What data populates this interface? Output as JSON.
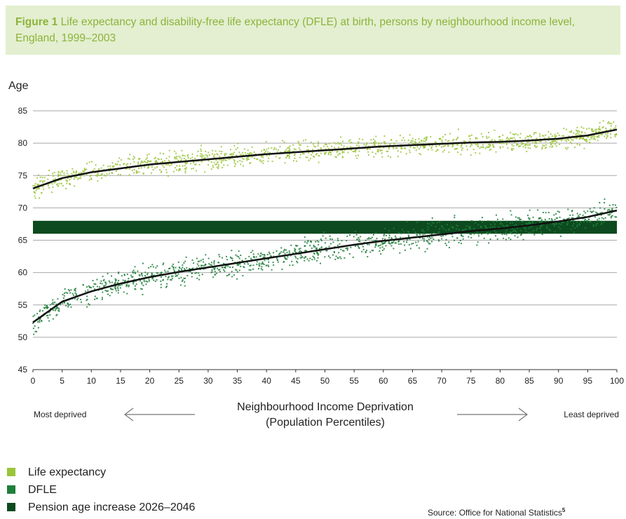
{
  "figure": {
    "label": "Figure 1",
    "title": "Life expectancy and disability-free life expectancy (DFLE) at birth, persons by neighbourhood income level, England, 1999–2003"
  },
  "chart_data": {
    "type": "scatter",
    "ylabel": "Age",
    "xlabel_line1": "Neighbourhood Income Deprivation",
    "xlabel_line2": "(Population Percentiles)",
    "x_left_note": "Most deprived",
    "x_right_note": "Least deprived",
    "xlim": [
      0,
      100
    ],
    "ylim": [
      45,
      85
    ],
    "x_ticks": [
      0,
      5,
      10,
      15,
      20,
      25,
      30,
      35,
      40,
      45,
      50,
      55,
      60,
      65,
      70,
      75,
      80,
      85,
      90,
      95,
      100
    ],
    "y_ticks": [
      45,
      50,
      55,
      60,
      65,
      70,
      75,
      80,
      85
    ],
    "grid": "horizontal",
    "series": [
      {
        "name": "Life expectancy",
        "color": "#9ac43c",
        "trend_x": [
          0,
          5,
          10,
          15,
          20,
          25,
          30,
          35,
          40,
          45,
          50,
          55,
          60,
          65,
          70,
          75,
          80,
          85,
          90,
          95,
          100
        ],
        "trend_y": [
          73.0,
          74.6,
          75.5,
          76.1,
          76.7,
          77.1,
          77.5,
          77.9,
          78.3,
          78.6,
          78.9,
          79.2,
          79.5,
          79.7,
          79.9,
          80.1,
          80.2,
          80.4,
          80.7,
          81.2,
          82.1
        ],
        "spread": 1.3
      },
      {
        "name": "DFLE",
        "color": "#1f7e3a",
        "trend_x": [
          0,
          5,
          10,
          15,
          20,
          25,
          30,
          35,
          40,
          45,
          50,
          55,
          60,
          65,
          70,
          75,
          80,
          85,
          90,
          95,
          100
        ],
        "trend_y": [
          52.3,
          55.5,
          57.1,
          58.3,
          59.3,
          60.1,
          60.8,
          61.5,
          62.2,
          62.9,
          63.6,
          64.3,
          64.9,
          65.4,
          65.9,
          66.4,
          66.8,
          67.3,
          67.9,
          68.6,
          69.6
        ],
        "spread": 1.6
      }
    ],
    "band": {
      "name": "Pension age increase 2026–2046",
      "color": "#0d4a1f",
      "y_from": 66,
      "y_to": 68
    }
  },
  "legend": [
    {
      "label": "Life expectancy",
      "color": "#9ac43c"
    },
    {
      "label": "DFLE",
      "color": "#1f7e3a"
    },
    {
      "label": "Pension age increase 2026–2046",
      "color": "#0d4a1f"
    }
  ],
  "source": {
    "text": "Source: Office for National Statistics",
    "superscript": "5"
  }
}
